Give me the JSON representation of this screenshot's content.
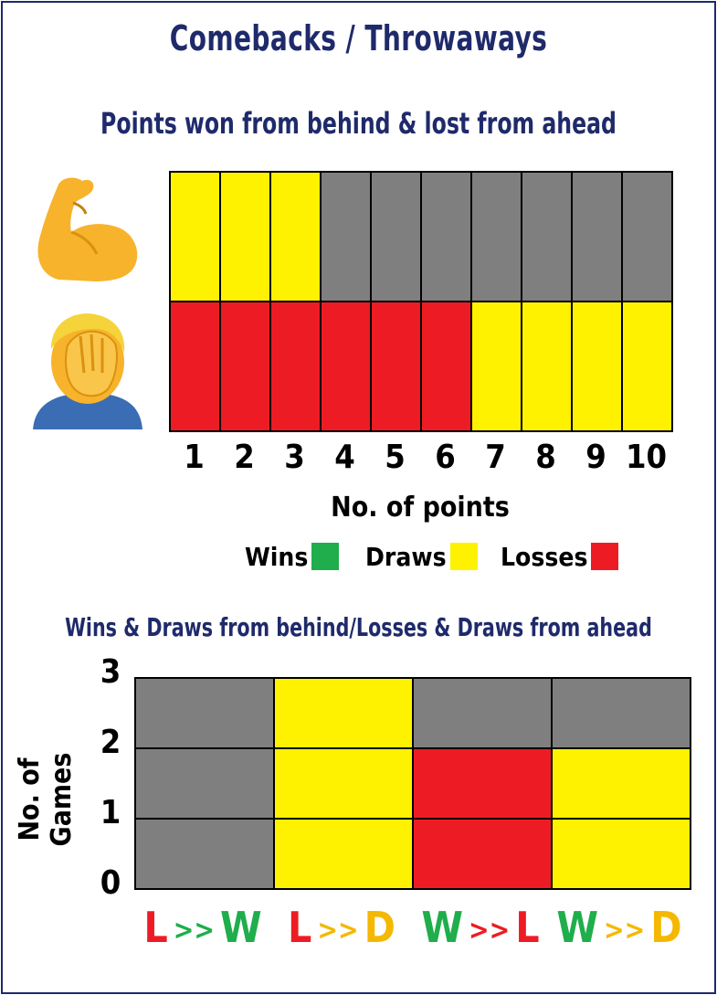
{
  "title": "Comebacks / Throwaways",
  "colors": {
    "win": "#1fae4b",
    "draw": "#fff200",
    "loss": "#ed1c24",
    "none": "#7f7f7f",
    "navy": "#1f2a6b"
  },
  "icons": [
    "flexed-biceps-icon",
    "facepalm-person-icon"
  ],
  "chart_data": [
    {
      "type": "heatmap",
      "title": "Points won from behind & lost from ahead",
      "xlabel": "No. of points",
      "x": [
        "1",
        "2",
        "3",
        "4",
        "5",
        "6",
        "7",
        "8",
        "9",
        "10"
      ],
      "rows": [
        {
          "name": "won from behind",
          "values": [
            "draw",
            "draw",
            "draw",
            "none",
            "none",
            "none",
            "none",
            "none",
            "none",
            "none"
          ]
        },
        {
          "name": "lost from ahead",
          "values": [
            "loss",
            "loss",
            "loss",
            "loss",
            "loss",
            "loss",
            "draw",
            "draw",
            "draw",
            "draw"
          ]
        }
      ],
      "legend": [
        {
          "label": "Wins",
          "result": "win"
        },
        {
          "label": "Draws",
          "result": "draw"
        },
        {
          "label": "Losses",
          "result": "loss"
        }
      ],
      "legend_position": "bottom"
    },
    {
      "type": "bar",
      "title": "Wins & Draws from behind/Losses & Draws from ahead",
      "ylabel": "No. of Games",
      "yticks": [
        "0",
        "1",
        "2",
        "3"
      ],
      "ylim": [
        0,
        3
      ],
      "categories": [
        {
          "from": "L",
          "sep": ">>",
          "to": "W",
          "from_color": "loss",
          "sep_color": "win",
          "to_color": "win"
        },
        {
          "from": "L",
          "sep": ">>",
          "to": "D",
          "from_color": "loss",
          "sep_color": "draworange",
          "to_color": "draworange"
        },
        {
          "from": "W",
          "sep": ">>",
          "to": "L",
          "from_color": "win",
          "sep_color": "loss",
          "to_color": "loss"
        },
        {
          "from": "W",
          "sep": ">>",
          "to": "D",
          "from_color": "win",
          "sep_color": "draworange",
          "to_color": "draworange"
        }
      ],
      "values": [
        0,
        3,
        2,
        2
      ],
      "bar_results": [
        "win",
        "draw",
        "loss",
        "draw"
      ]
    }
  ]
}
